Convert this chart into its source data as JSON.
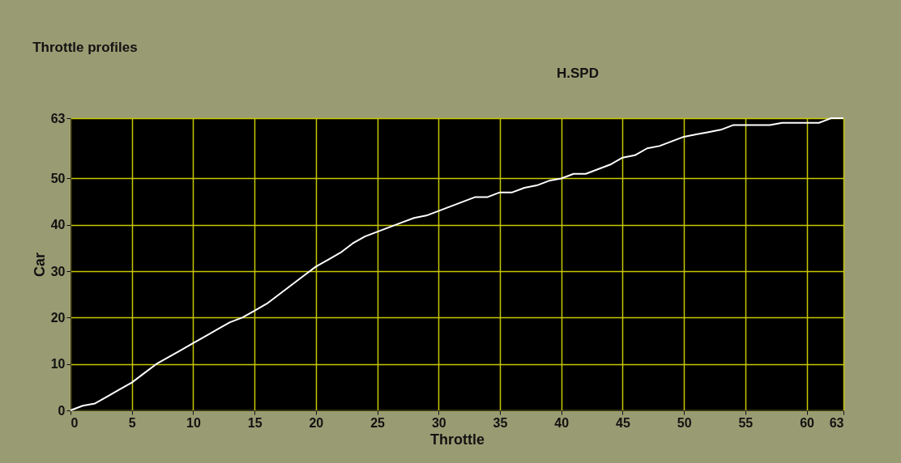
{
  "chart_data": {
    "type": "line",
    "title": "Throttle profiles",
    "xlabel": "Throttle",
    "ylabel": "Car",
    "annotations": [
      "H.SPD"
    ],
    "x": [
      0,
      1,
      2,
      3,
      4,
      5,
      6,
      7,
      8,
      9,
      10,
      11,
      12,
      13,
      14,
      15,
      16,
      17,
      18,
      19,
      20,
      21,
      22,
      23,
      24,
      25,
      26,
      27,
      28,
      29,
      30,
      31,
      32,
      33,
      34,
      35,
      36,
      37,
      38,
      39,
      40,
      41,
      42,
      43,
      44,
      45,
      46,
      47,
      48,
      49,
      50,
      51,
      52,
      53,
      54,
      55,
      56,
      57,
      58,
      59,
      60,
      61,
      62,
      63
    ],
    "series": [
      {
        "color": "#ffffff",
        "values": [
          0,
          1,
          1.5,
          3,
          4.5,
          6,
          8,
          10,
          11.5,
          13,
          14.5,
          16,
          17.5,
          19,
          20,
          21.5,
          23,
          25,
          27,
          29,
          31,
          32.5,
          34,
          36,
          37.5,
          38.5,
          39.5,
          40.5,
          41.5,
          42,
          43,
          44,
          45,
          46,
          46,
          47,
          47,
          48,
          48.5,
          49.5,
          50,
          51,
          51,
          52,
          53,
          54.5,
          55,
          56.5,
          57,
          58,
          59,
          59.5,
          60,
          60.5,
          61.5,
          61.5,
          61.5,
          61.5,
          62,
          62,
          62,
          62,
          63,
          63
        ]
      }
    ],
    "xlim": [
      0,
      63
    ],
    "ylim": [
      0,
      63
    ],
    "xticks": [
      0,
      5,
      10,
      15,
      20,
      25,
      30,
      35,
      40,
      45,
      50,
      55,
      60,
      63
    ],
    "yticks": [
      0,
      10,
      20,
      30,
      40,
      50,
      63
    ],
    "grid": true,
    "legend": false,
    "marker": "none",
    "line_style": "solid"
  }
}
